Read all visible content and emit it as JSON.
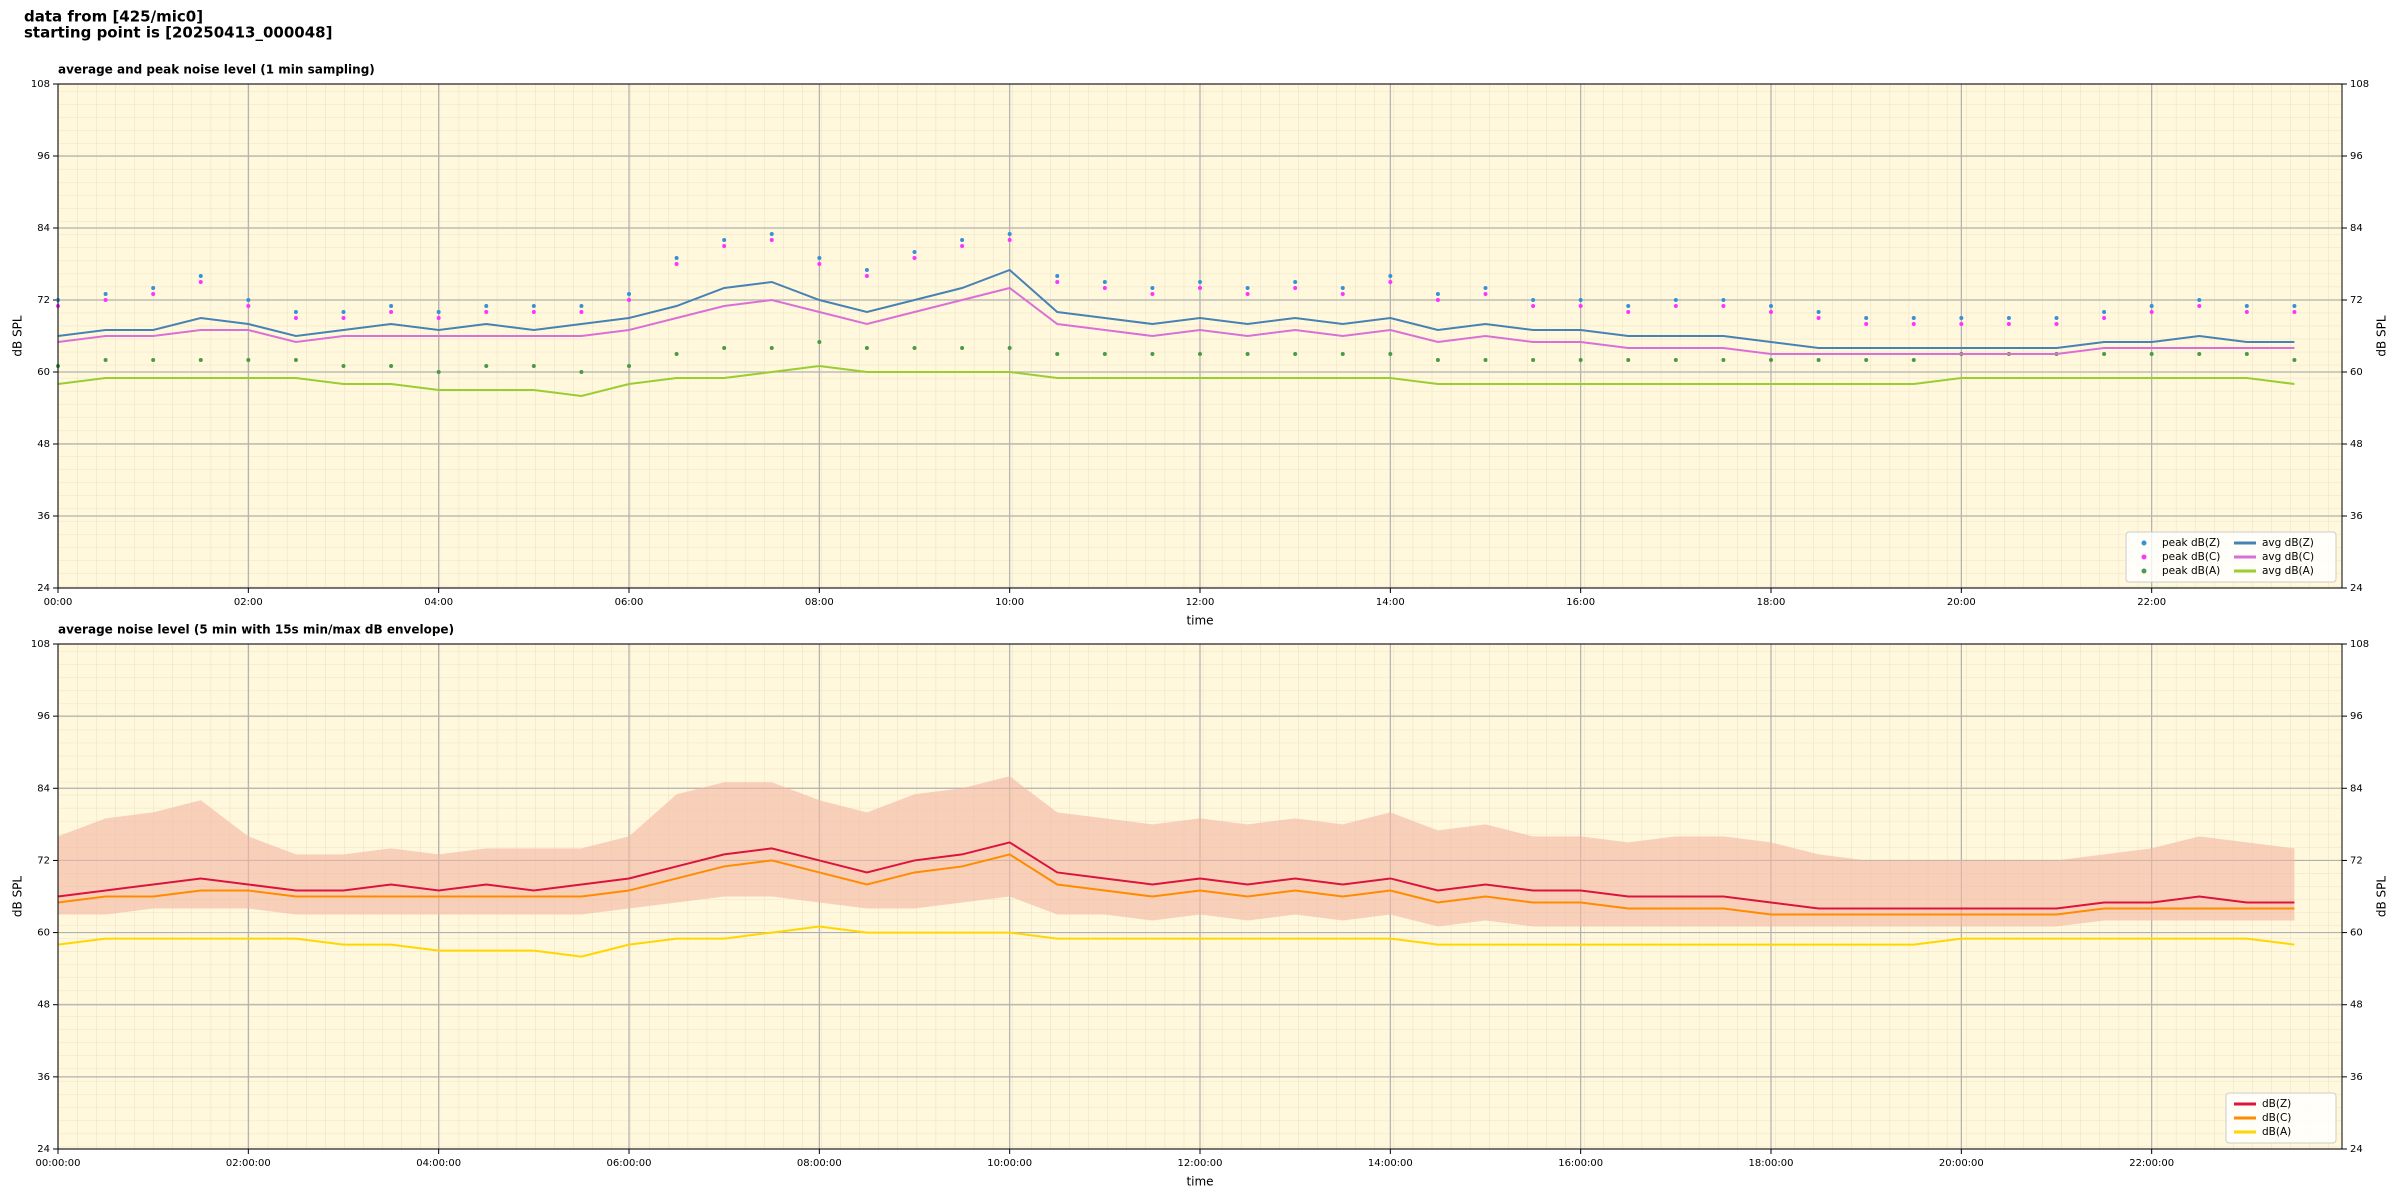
{
  "header": {
    "lines": [
      "data from [425/mic0]",
      "starting point is [20250413_000048]"
    ]
  },
  "chart_data": [
    {
      "type": "line",
      "title": "average and peak noise level (1 min sampling)",
      "xlabel": "time",
      "ylabel": "dB SPL",
      "xlim": [
        0,
        24
      ],
      "ylim": [
        24,
        108
      ],
      "yticks": [
        24,
        36,
        48,
        60,
        72,
        84,
        96,
        108
      ],
      "xticks": [
        {
          "value": 0,
          "label": "00:00"
        },
        {
          "value": 2,
          "label": "02:00"
        },
        {
          "value": 4,
          "label": "04:00"
        },
        {
          "value": 6,
          "label": "06:00"
        },
        {
          "value": 8,
          "label": "08:00"
        },
        {
          "value": 10,
          "label": "10:00"
        },
        {
          "value": 12,
          "label": "12:00"
        },
        {
          "value": 14,
          "label": "14:00"
        },
        {
          "value": 16,
          "label": "16:00"
        },
        {
          "value": 18,
          "label": "18:00"
        },
        {
          "value": 20,
          "label": "20:00"
        },
        {
          "value": 22,
          "label": "22:00"
        }
      ],
      "grid": true,
      "legend": "lower right",
      "legend_columns": 2,
      "background": "#fff8dc",
      "x": [
        0,
        0.5,
        1,
        1.5,
        2,
        2.5,
        3,
        3.5,
        4,
        4.5,
        5,
        5.5,
        6,
        6.5,
        7,
        7.5,
        8,
        8.5,
        9,
        9.5,
        10,
        10.5,
        11,
        11.5,
        12,
        12.5,
        13,
        13.5,
        14,
        14.5,
        15,
        15.5,
        16,
        16.5,
        17,
        17.5,
        18,
        18.5,
        19,
        19.5,
        20,
        20.5,
        21,
        21.5,
        22,
        22.5,
        23,
        23.5
      ],
      "series": [
        {
          "name": "peak dB(Z)",
          "type": "scatter",
          "color": "#3a8fd9",
          "values": [
            72,
            73,
            74,
            76,
            72,
            70,
            70,
            71,
            70,
            71,
            71,
            71,
            73,
            79,
            82,
            83,
            79,
            77,
            80,
            82,
            83,
            76,
            75,
            74,
            75,
            74,
            75,
            74,
            76,
            73,
            74,
            72,
            72,
            71,
            72,
            72,
            71,
            70,
            69,
            69,
            69,
            69,
            69,
            70,
            71,
            72,
            71,
            71
          ]
        },
        {
          "name": "peak dB(C)",
          "type": "scatter",
          "color": "#ff33ff",
          "values": [
            71,
            72,
            73,
            75,
            71,
            69,
            69,
            70,
            69,
            70,
            70,
            70,
            72,
            78,
            81,
            82,
            78,
            76,
            79,
            81,
            82,
            75,
            74,
            73,
            74,
            73,
            74,
            73,
            75,
            72,
            73,
            71,
            71,
            70,
            71,
            71,
            70,
            69,
            68,
            68,
            68,
            68,
            68,
            69,
            70,
            71,
            70,
            70
          ]
        },
        {
          "name": "peak dB(A)",
          "type": "scatter",
          "color": "#4a9a4a",
          "values": [
            61,
            62,
            62,
            62,
            62,
            62,
            61,
            61,
            60,
            61,
            61,
            60,
            61,
            63,
            64,
            64,
            65,
            64,
            64,
            64,
            64,
            63,
            63,
            63,
            63,
            63,
            63,
            63,
            63,
            62,
            62,
            62,
            62,
            62,
            62,
            62,
            62,
            62,
            62,
            62,
            63,
            63,
            63,
            63,
            63,
            63,
            63,
            62
          ]
        },
        {
          "name": "avg dB(Z)",
          "type": "line",
          "color": "#4682b4",
          "values": [
            66,
            67,
            67,
            69,
            68,
            66,
            67,
            68,
            67,
            68,
            67,
            68,
            69,
            71,
            74,
            75,
            72,
            70,
            72,
            74,
            77,
            70,
            69,
            68,
            69,
            68,
            69,
            68,
            69,
            67,
            68,
            67,
            67,
            66,
            66,
            66,
            65,
            64,
            64,
            64,
            64,
            64,
            64,
            65,
            65,
            66,
            65,
            65
          ]
        },
        {
          "name": "avg dB(C)",
          "type": "line",
          "color": "#da70d6",
          "values": [
            65,
            66,
            66,
            67,
            67,
            65,
            66,
            66,
            66,
            66,
            66,
            66,
            67,
            69,
            71,
            72,
            70,
            68,
            70,
            72,
            74,
            68,
            67,
            66,
            67,
            66,
            67,
            66,
            67,
            65,
            66,
            65,
            65,
            64,
            64,
            64,
            63,
            63,
            63,
            63,
            63,
            63,
            63,
            64,
            64,
            64,
            64,
            64
          ]
        },
        {
          "name": "avg dB(A)",
          "type": "line",
          "color": "#9acd32",
          "values": [
            58,
            59,
            59,
            59,
            59,
            59,
            58,
            58,
            57,
            57,
            57,
            56,
            58,
            59,
            59,
            60,
            61,
            60,
            60,
            60,
            60,
            59,
            59,
            59,
            59,
            59,
            59,
            59,
            59,
            58,
            58,
            58,
            58,
            58,
            58,
            58,
            58,
            58,
            58,
            58,
            59,
            59,
            59,
            59,
            59,
            59,
            59,
            58
          ]
        }
      ]
    },
    {
      "type": "line",
      "title": "average noise level (5 min with 15s min/max dB envelope)",
      "xlabel": "time",
      "ylabel": "dB SPL",
      "xlim": [
        0,
        24
      ],
      "ylim": [
        24,
        108
      ],
      "yticks": [
        24,
        36,
        48,
        60,
        72,
        84,
        96,
        108
      ],
      "xticks": [
        {
          "value": 0,
          "label": "00:00:00"
        },
        {
          "value": 2,
          "label": "02:00:00"
        },
        {
          "value": 4,
          "label": "04:00:00"
        },
        {
          "value": 6,
          "label": "06:00:00"
        },
        {
          "value": 8,
          "label": "08:00:00"
        },
        {
          "value": 10,
          "label": "10:00:00"
        },
        {
          "value": 12,
          "label": "12:00:00"
        },
        {
          "value": 14,
          "label": "14:00:00"
        },
        {
          "value": 16,
          "label": "16:00:00"
        },
        {
          "value": 18,
          "label": "18:00:00"
        },
        {
          "value": 20,
          "label": "20:00:00"
        },
        {
          "value": 22,
          "label": "22:00:00"
        }
      ],
      "grid": true,
      "legend": "lower right",
      "legend_columns": 1,
      "background": "#fff8dc",
      "x": [
        0,
        0.5,
        1,
        1.5,
        2,
        2.5,
        3,
        3.5,
        4,
        4.5,
        5,
        5.5,
        6,
        6.5,
        7,
        7.5,
        8,
        8.5,
        9,
        9.5,
        10,
        10.5,
        11,
        11.5,
        12,
        12.5,
        13,
        13.5,
        14,
        14.5,
        15,
        15.5,
        16,
        16.5,
        17,
        17.5,
        18,
        18.5,
        19,
        19.5,
        20,
        20.5,
        21,
        21.5,
        22,
        22.5,
        23,
        23.5
      ],
      "envelope": {
        "color": "#f4b6a2",
        "low": [
          63,
          63,
          64,
          64,
          64,
          63,
          63,
          63,
          63,
          63,
          63,
          63,
          64,
          65,
          66,
          66,
          65,
          64,
          64,
          65,
          66,
          63,
          63,
          62,
          63,
          62,
          63,
          62,
          63,
          61,
          62,
          61,
          61,
          61,
          61,
          61,
          61,
          61,
          61,
          61,
          61,
          61,
          61,
          62,
          62,
          62,
          62,
          62
        ],
        "high": [
          76,
          79,
          80,
          82,
          76,
          73,
          73,
          74,
          73,
          74,
          74,
          74,
          76,
          83,
          85,
          85,
          82,
          80,
          83,
          84,
          86,
          80,
          79,
          78,
          79,
          78,
          79,
          78,
          80,
          77,
          78,
          76,
          76,
          75,
          76,
          76,
          75,
          73,
          72,
          72,
          72,
          72,
          72,
          73,
          74,
          76,
          75,
          74
        ]
      },
      "series": [
        {
          "name": "dB(Z)",
          "type": "line",
          "color": "#dc143c",
          "values": [
            66,
            67,
            68,
            69,
            68,
            67,
            67,
            68,
            67,
            68,
            67,
            68,
            69,
            71,
            73,
            74,
            72,
            70,
            72,
            73,
            75,
            70,
            69,
            68,
            69,
            68,
            69,
            68,
            69,
            67,
            68,
            67,
            67,
            66,
            66,
            66,
            65,
            64,
            64,
            64,
            64,
            64,
            64,
            65,
            65,
            66,
            65,
            65
          ]
        },
        {
          "name": "dB(C)",
          "type": "line",
          "color": "#ff8c00",
          "values": [
            65,
            66,
            66,
            67,
            67,
            66,
            66,
            66,
            66,
            66,
            66,
            66,
            67,
            69,
            71,
            72,
            70,
            68,
            70,
            71,
            73,
            68,
            67,
            66,
            67,
            66,
            67,
            66,
            67,
            65,
            66,
            65,
            65,
            64,
            64,
            64,
            63,
            63,
            63,
            63,
            63,
            63,
            63,
            64,
            64,
            64,
            64,
            64
          ]
        },
        {
          "name": "dB(A)",
          "type": "line",
          "color": "#ffd700",
          "values": [
            58,
            59,
            59,
            59,
            59,
            59,
            58,
            58,
            57,
            57,
            57,
            56,
            58,
            59,
            59,
            60,
            61,
            60,
            60,
            60,
            60,
            59,
            59,
            59,
            59,
            59,
            59,
            59,
            59,
            58,
            58,
            58,
            58,
            58,
            58,
            58,
            58,
            58,
            58,
            58,
            59,
            59,
            59,
            59,
            59,
            59,
            59,
            58
          ]
        }
      ]
    }
  ]
}
